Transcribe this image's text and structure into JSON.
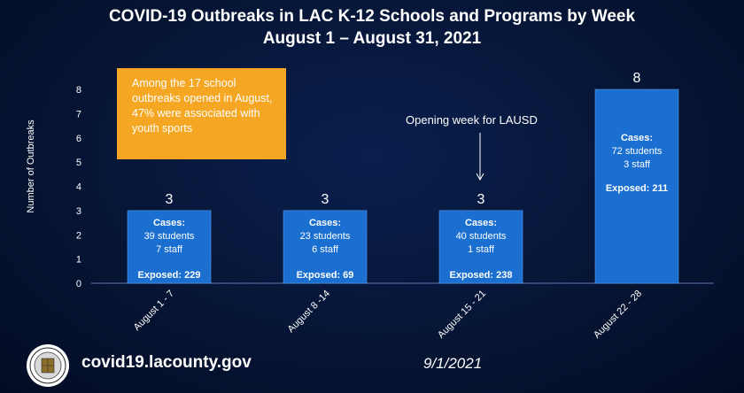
{
  "chart_data": {
    "type": "bar",
    "title": "COVID-19 Outbreaks in LAC K-12 Schools and Programs by Week",
    "subtitle": "August 1 – August 31, 2021",
    "ylabel": "Number of Outbreaks",
    "ylim": [
      0,
      8
    ],
    "yticks": [
      "0",
      "1",
      "2",
      "3",
      "4",
      "5",
      "6",
      "7",
      "8"
    ],
    "categories": [
      "August 1 - 7",
      "August 8 -14",
      "August 15 - 21",
      "August 22 - 28"
    ],
    "values": [
      3,
      3,
      3,
      8
    ],
    "value_labels": [
      "3",
      "3",
      "3",
      "8"
    ],
    "bar_details": [
      {
        "cases_label": "Cases:",
        "students": "39 students",
        "staff": "7 staff",
        "exposed": "Exposed: 229"
      },
      {
        "cases_label": "Cases:",
        "students": "23 students",
        "staff": "6 staff",
        "exposed": "Exposed: 69"
      },
      {
        "cases_label": "Cases:",
        "students": "40 students",
        "staff": "1 staff",
        "exposed": "Exposed: 238"
      },
      {
        "cases_label": "Cases:",
        "students": "72  students",
        "staff": "3 staff",
        "exposed": "Exposed: 211"
      }
    ],
    "bar_color": "#1a6fd0",
    "grid": false
  },
  "callout": {
    "text": "Among the 17 school outbreaks opened in August, 47% were associated with youth sports",
    "color": "#f5a623"
  },
  "annotation": {
    "text": "Opening week for LAUSD"
  },
  "footer": {
    "url": "covid19.lacounty.gov",
    "date": "9/1/2021",
    "logo_icon": "county-seal-icon"
  }
}
